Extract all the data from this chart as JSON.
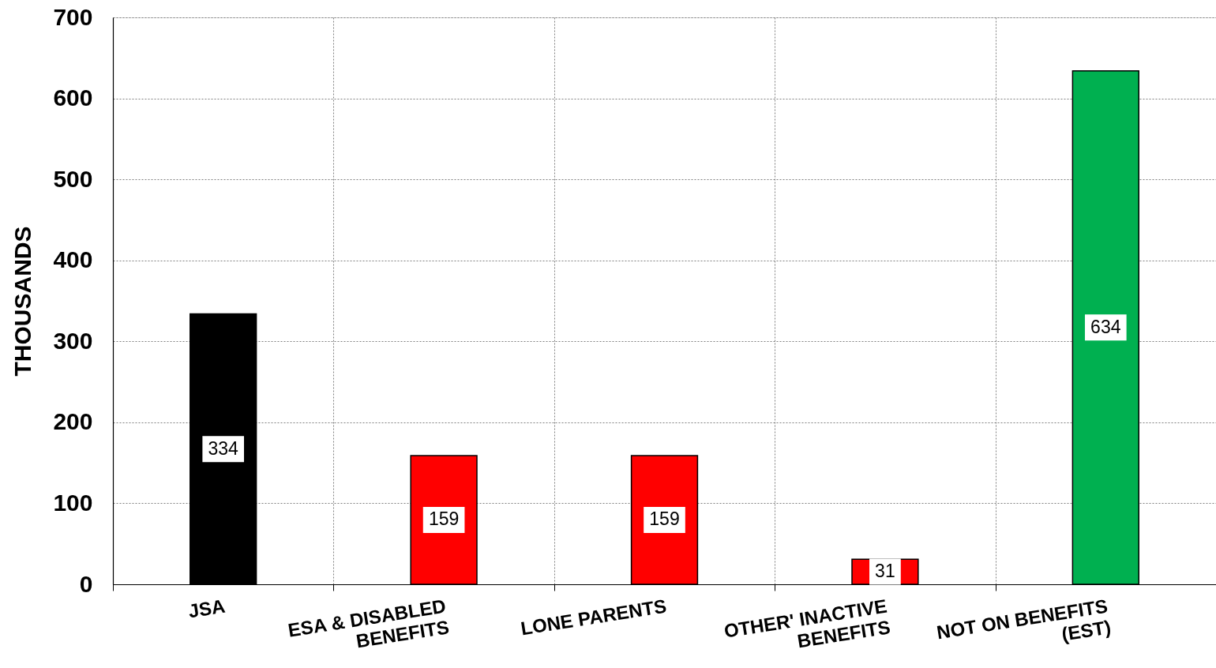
{
  "chart_data": {
    "type": "bar",
    "ylabel": "THOUSANDS",
    "categories": [
      "JSA",
      "ESA & DISABLED BENEFITS",
      "LONE PARENTS",
      "OTHER' INACTIVE BENEFITS",
      "NOT ON BENEFITS (EST)"
    ],
    "values": [
      334,
      159,
      159,
      31,
      634
    ],
    "colors": [
      "#000000",
      "#ff0000",
      "#ff0000",
      "#ff0000",
      "#00b050"
    ],
    "ylim": [
      0,
      700
    ],
    "yticks": [
      0,
      100,
      200,
      300,
      400,
      500,
      600,
      700
    ],
    "grid": true,
    "data_labels": true
  }
}
